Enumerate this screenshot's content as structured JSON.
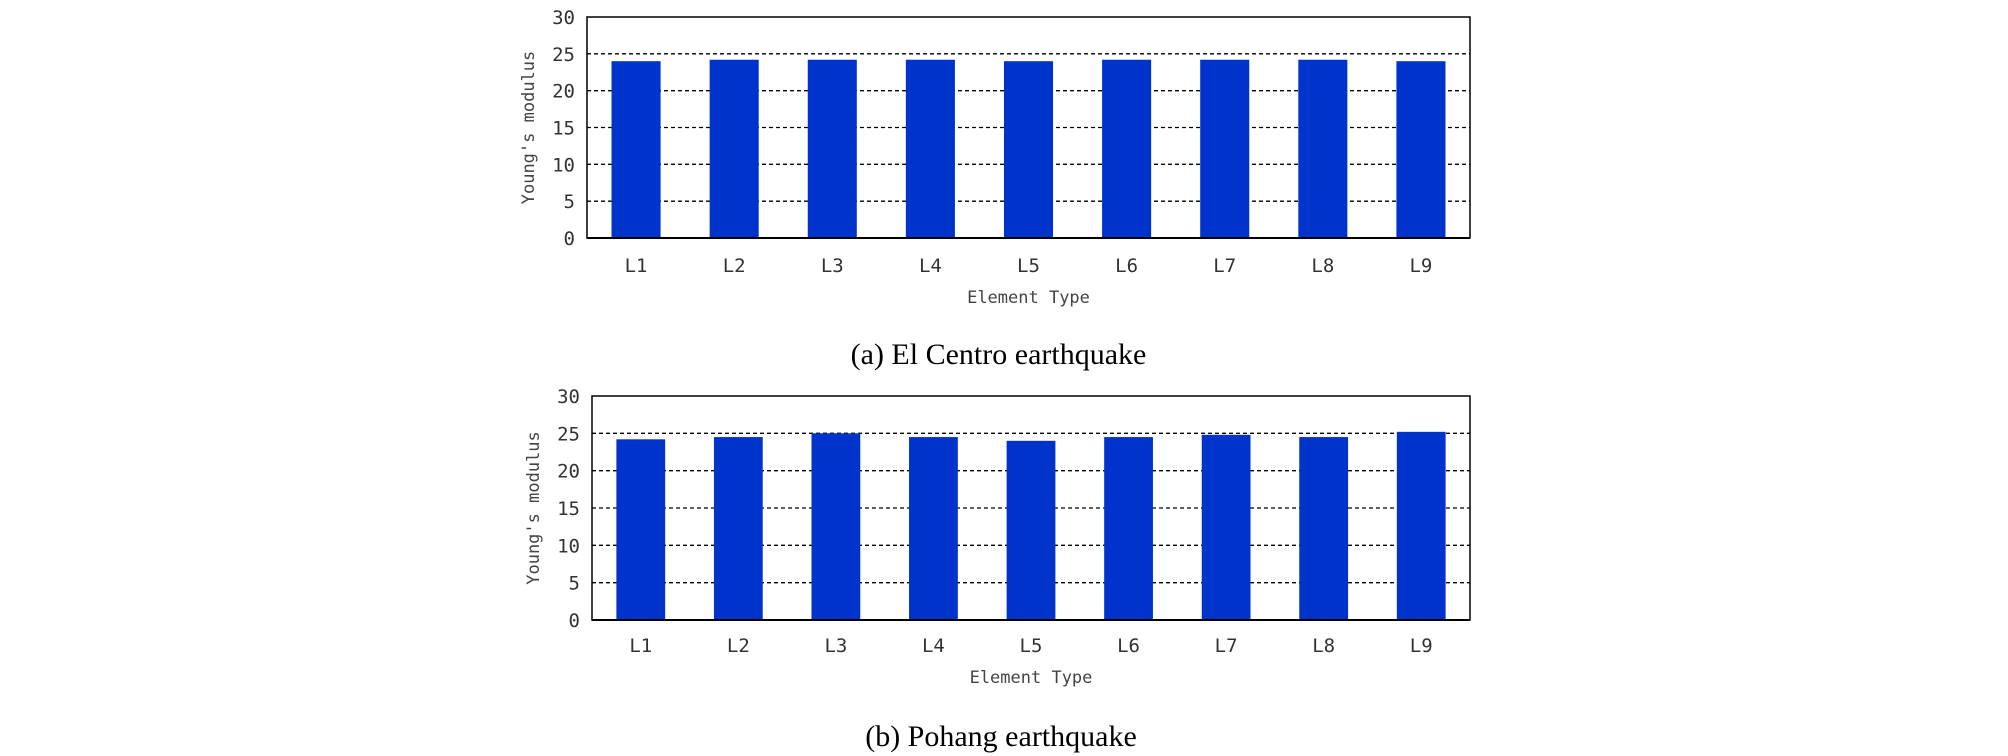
{
  "chart_data": [
    {
      "type": "bar",
      "caption": "(a) El Centro earthquake",
      "xlabel": "Element Type",
      "ylabel": "Young's modulus",
      "categories": [
        "L1",
        "L2",
        "L3",
        "L4",
        "L5",
        "L6",
        "L7",
        "L8",
        "L9"
      ],
      "values": [
        24.0,
        24.2,
        24.2,
        24.2,
        24.0,
        24.2,
        24.2,
        24.2,
        24.0
      ],
      "ylim": [
        0,
        30
      ],
      "yticks": [
        0,
        5,
        10,
        15,
        20,
        25,
        30
      ],
      "grid": "horizontal dashed",
      "bar_color": "#0033cc"
    },
    {
      "type": "bar",
      "caption": "(b) Pohang earthquake",
      "xlabel": "Element Type",
      "ylabel": "Young's modulus",
      "categories": [
        "L1",
        "L2",
        "L3",
        "L4",
        "L5",
        "L6",
        "L7",
        "L8",
        "L9"
      ],
      "values": [
        24.2,
        24.5,
        25.0,
        24.5,
        24.0,
        24.5,
        24.8,
        24.5,
        25.2
      ],
      "ylim": [
        0,
        30
      ],
      "yticks": [
        0,
        5,
        10,
        15,
        20,
        25,
        30
      ],
      "grid": "horizontal dashed",
      "bar_color": "#0033cc"
    }
  ]
}
